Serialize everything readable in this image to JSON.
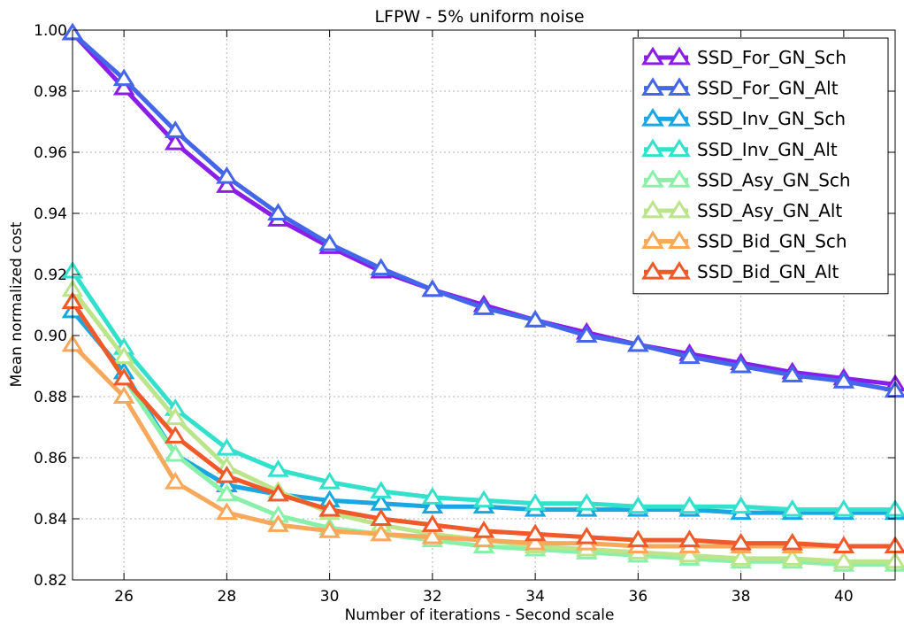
{
  "chart_data": {
    "type": "line",
    "title": "LFPW - 5% uniform noise",
    "xlabel": "Number of iterations - Second scale",
    "ylabel": "Mean normalized cost",
    "xlim": [
      25,
      41
    ],
    "ylim": [
      0.82,
      1.0
    ],
    "xticks": [
      26,
      28,
      30,
      32,
      34,
      36,
      38,
      40
    ],
    "yticks": [
      0.82,
      0.84,
      0.86,
      0.88,
      0.9,
      0.92,
      0.94,
      0.96,
      0.98,
      1.0
    ],
    "xtick_labels": [
      "26",
      "28",
      "30",
      "32",
      "34",
      "36",
      "38",
      "40"
    ],
    "ytick_labels": [
      "0.82",
      "0.84",
      "0.86",
      "0.88",
      "0.90",
      "0.92",
      "0.94",
      "0.96",
      "0.98",
      "1.00"
    ],
    "grid": true,
    "legend_position": "top-right",
    "marker": "triangle",
    "x": [
      25,
      26,
      27,
      28,
      29,
      30,
      31,
      32,
      33,
      34,
      35,
      36,
      37,
      38,
      39,
      40,
      41
    ],
    "series": [
      {
        "name": "SSD_For_GN_Sch",
        "color": "#8a1ee8",
        "values": [
          0.999,
          0.981,
          0.963,
          0.949,
          0.938,
          0.929,
          0.921,
          0.915,
          0.91,
          0.905,
          0.901,
          0.897,
          0.894,
          0.891,
          0.888,
          0.886,
          0.884
        ]
      },
      {
        "name": "SSD_For_GN_Alt",
        "color": "#4466e8",
        "values": [
          0.999,
          0.984,
          0.967,
          0.952,
          0.94,
          0.93,
          0.922,
          0.915,
          0.909,
          0.905,
          0.9,
          0.897,
          0.893,
          0.89,
          0.887,
          0.885,
          0.882
        ]
      },
      {
        "name": "SSD_Inv_GN_Sch",
        "color": "#1aa6e0",
        "values": [
          0.908,
          0.888,
          0.861,
          0.851,
          0.848,
          0.846,
          0.845,
          0.844,
          0.844,
          0.843,
          0.843,
          0.843,
          0.843,
          0.842,
          0.842,
          0.842,
          0.842
        ]
      },
      {
        "name": "SSD_Inv_GN_Alt",
        "color": "#33e0cc",
        "values": [
          0.921,
          0.896,
          0.876,
          0.863,
          0.856,
          0.852,
          0.849,
          0.847,
          0.846,
          0.845,
          0.845,
          0.844,
          0.844,
          0.844,
          0.843,
          0.843,
          0.843
        ]
      },
      {
        "name": "SSD_Asy_GN_Sch",
        "color": "#88f0a8",
        "values": [
          0.911,
          0.886,
          0.861,
          0.848,
          0.841,
          0.837,
          0.835,
          0.833,
          0.831,
          0.83,
          0.829,
          0.828,
          0.827,
          0.826,
          0.826,
          0.825,
          0.825
        ]
      },
      {
        "name": "SSD_Asy_GN_Alt",
        "color": "#bce48a",
        "values": [
          0.915,
          0.893,
          0.873,
          0.857,
          0.849,
          0.842,
          0.838,
          0.835,
          0.833,
          0.831,
          0.83,
          0.829,
          0.828,
          0.827,
          0.827,
          0.826,
          0.826
        ]
      },
      {
        "name": "SSD_Bid_GN_Sch",
        "color": "#f8a85a",
        "values": [
          0.897,
          0.88,
          0.852,
          0.842,
          0.838,
          0.836,
          0.835,
          0.834,
          0.833,
          0.832,
          0.832,
          0.831,
          0.831,
          0.831,
          0.831,
          0.831,
          0.831
        ]
      },
      {
        "name": "SSD_Bid_GN_Alt",
        "color": "#f05a2a",
        "values": [
          0.911,
          0.886,
          0.867,
          0.854,
          0.848,
          0.843,
          0.84,
          0.838,
          0.836,
          0.835,
          0.834,
          0.833,
          0.833,
          0.832,
          0.832,
          0.831,
          0.831
        ]
      }
    ]
  }
}
